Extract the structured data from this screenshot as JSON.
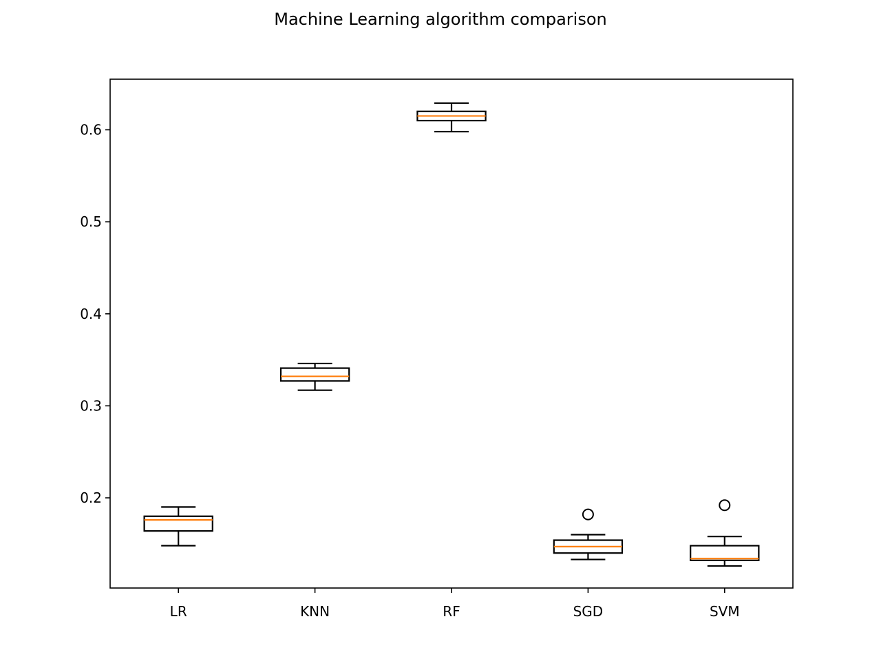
{
  "chart_data": {
    "type": "box",
    "title": "Machine Learning algorithm comparison",
    "xlabel": "",
    "ylabel": "",
    "categories": [
      "LR",
      "KNN",
      "RF",
      "SGD",
      "SVM"
    ],
    "boxes": [
      {
        "label": "LR",
        "whisker_low": 0.148,
        "q1": 0.164,
        "median": 0.176,
        "q3": 0.18,
        "whisker_high": 0.19,
        "outliers": []
      },
      {
        "label": "KNN",
        "whisker_low": 0.317,
        "q1": 0.327,
        "median": 0.332,
        "q3": 0.341,
        "whisker_high": 0.346,
        "outliers": []
      },
      {
        "label": "RF",
        "whisker_low": 0.598,
        "q1": 0.61,
        "median": 0.615,
        "q3": 0.62,
        "whisker_high": 0.629,
        "outliers": []
      },
      {
        "label": "SGD",
        "whisker_low": 0.133,
        "q1": 0.14,
        "median": 0.147,
        "q3": 0.154,
        "whisker_high": 0.16,
        "outliers": [
          0.182
        ]
      },
      {
        "label": "SVM",
        "whisker_low": 0.126,
        "q1": 0.132,
        "median": 0.134,
        "q3": 0.148,
        "whisker_high": 0.158,
        "outliers": [
          0.192
        ]
      }
    ],
    "yticks": [
      0.2,
      0.3,
      0.4,
      0.5,
      0.6
    ],
    "ytick_labels": [
      "0.2",
      "0.3",
      "0.4",
      "0.5",
      "0.6"
    ],
    "ylim": [
      0.102,
      0.655
    ],
    "grid": false,
    "legend": "none",
    "colors": {
      "box": "#000000",
      "median": "#ff7f0e",
      "outlier": "#000000",
      "axes": "#000000"
    }
  }
}
